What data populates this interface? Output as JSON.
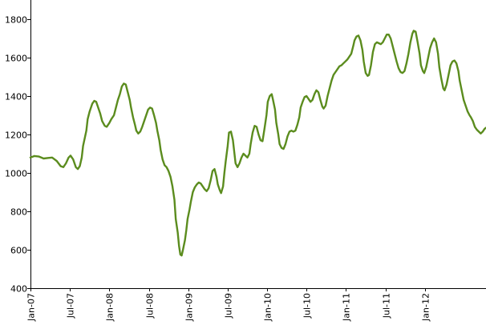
{
  "chart_data": {
    "type": "line",
    "title": "",
    "xlabel": "",
    "ylabel": "",
    "ylim": [
      400,
      1900
    ],
    "y_ticks": [
      400,
      600,
      800,
      1000,
      1200,
      1400,
      1600,
      1800
    ],
    "x_ticks": [
      {
        "label": "Jan-07",
        "t": 0
      },
      {
        "label": "Jul-07",
        "t": 6
      },
      {
        "label": "Jan-08",
        "t": 12
      },
      {
        "label": "Jul-08",
        "t": 18
      },
      {
        "label": "Jan-09",
        "t": 24
      },
      {
        "label": "Jul-09",
        "t": 30
      },
      {
        "label": "Jan-10",
        "t": 36
      },
      {
        "label": "Jul-10",
        "t": 42
      },
      {
        "label": "Jan-11",
        "t": 48
      },
      {
        "label": "Jul-11",
        "t": 54
      },
      {
        "label": "Jan-12",
        "t": 60
      }
    ],
    "x_range": [
      0,
      68
    ],
    "grid": false,
    "series": [
      {
        "color": "#5b8c1e",
        "points": [
          [
            0.0,
            1080
          ],
          [
            0.6,
            1088
          ],
          [
            1.3,
            1085
          ],
          [
            2.0,
            1075
          ],
          [
            2.7,
            1078
          ],
          [
            3.3,
            1080
          ],
          [
            4.0,
            1062
          ],
          [
            4.6,
            1035
          ],
          [
            5.0,
            1030
          ],
          [
            5.4,
            1050
          ],
          [
            5.8,
            1080
          ],
          [
            6.1,
            1090
          ],
          [
            6.5,
            1070
          ],
          [
            6.9,
            1030
          ],
          [
            7.2,
            1020
          ],
          [
            7.5,
            1035
          ],
          [
            7.8,
            1080
          ],
          [
            8.0,
            1140
          ],
          [
            8.5,
            1220
          ],
          [
            8.7,
            1280
          ],
          [
            9.0,
            1320
          ],
          [
            9.4,
            1360
          ],
          [
            9.7,
            1375
          ],
          [
            10.0,
            1370
          ],
          [
            10.3,
            1340
          ],
          [
            10.6,
            1310
          ],
          [
            10.9,
            1270
          ],
          [
            11.3,
            1245
          ],
          [
            11.6,
            1240
          ],
          [
            12.0,
            1260
          ],
          [
            12.3,
            1280
          ],
          [
            12.7,
            1300
          ],
          [
            13.0,
            1340
          ],
          [
            13.3,
            1380
          ],
          [
            13.6,
            1410
          ],
          [
            13.9,
            1450
          ],
          [
            14.2,
            1465
          ],
          [
            14.5,
            1460
          ],
          [
            14.8,
            1420
          ],
          [
            15.1,
            1380
          ],
          [
            15.3,
            1340
          ],
          [
            15.6,
            1290
          ],
          [
            15.9,
            1250
          ],
          [
            16.1,
            1220
          ],
          [
            16.4,
            1205
          ],
          [
            16.7,
            1215
          ],
          [
            17.0,
            1240
          ],
          [
            17.3,
            1270
          ],
          [
            17.6,
            1300
          ],
          [
            17.9,
            1330
          ],
          [
            18.2,
            1340
          ],
          [
            18.5,
            1335
          ],
          [
            18.8,
            1300
          ],
          [
            19.1,
            1260
          ],
          [
            19.3,
            1220
          ],
          [
            19.6,
            1170
          ],
          [
            19.8,
            1120
          ],
          [
            20.1,
            1070
          ],
          [
            20.4,
            1040
          ],
          [
            20.7,
            1030
          ],
          [
            21.0,
            1010
          ],
          [
            21.3,
            980
          ],
          [
            21.6,
            930
          ],
          [
            21.9,
            860
          ],
          [
            22.1,
            760
          ],
          [
            22.4,
            690
          ],
          [
            22.6,
            620
          ],
          [
            22.8,
            575
          ],
          [
            23.0,
            570
          ],
          [
            23.2,
            600
          ],
          [
            23.5,
            650
          ],
          [
            23.7,
            700
          ],
          [
            23.9,
            760
          ],
          [
            24.2,
            810
          ],
          [
            24.4,
            850
          ],
          [
            24.7,
            900
          ],
          [
            25.0,
            925
          ],
          [
            25.3,
            940
          ],
          [
            25.6,
            950
          ],
          [
            25.9,
            945
          ],
          [
            26.2,
            930
          ],
          [
            26.5,
            915
          ],
          [
            26.8,
            905
          ],
          [
            27.1,
            920
          ],
          [
            27.4,
            960
          ],
          [
            27.7,
            1010
          ],
          [
            28.0,
            1020
          ],
          [
            28.3,
            980
          ],
          [
            28.5,
            940
          ],
          [
            28.8,
            910
          ],
          [
            29.0,
            895
          ],
          [
            29.3,
            930
          ],
          [
            29.5,
            1000
          ],
          [
            29.7,
            1060
          ],
          [
            30.0,
            1140
          ],
          [
            30.2,
            1210
          ],
          [
            30.5,
            1215
          ],
          [
            30.8,
            1170
          ],
          [
            31.0,
            1110
          ],
          [
            31.2,
            1050
          ],
          [
            31.5,
            1030
          ],
          [
            31.8,
            1050
          ],
          [
            32.1,
            1080
          ],
          [
            32.4,
            1100
          ],
          [
            32.7,
            1090
          ],
          [
            33.0,
            1080
          ],
          [
            33.3,
            1100
          ],
          [
            33.5,
            1150
          ],
          [
            33.8,
            1210
          ],
          [
            34.1,
            1245
          ],
          [
            34.4,
            1240
          ],
          [
            34.7,
            1200
          ],
          [
            35.0,
            1170
          ],
          [
            35.3,
            1165
          ],
          [
            35.6,
            1230
          ],
          [
            35.9,
            1300
          ],
          [
            36.1,
            1370
          ],
          [
            36.4,
            1400
          ],
          [
            36.7,
            1410
          ],
          [
            36.9,
            1380
          ],
          [
            37.2,
            1330
          ],
          [
            37.4,
            1260
          ],
          [
            37.7,
            1200
          ],
          [
            37.9,
            1150
          ],
          [
            38.2,
            1130
          ],
          [
            38.5,
            1125
          ],
          [
            38.8,
            1150
          ],
          [
            39.1,
            1190
          ],
          [
            39.4,
            1215
          ],
          [
            39.7,
            1220
          ],
          [
            40.0,
            1215
          ],
          [
            40.3,
            1220
          ],
          [
            40.6,
            1250
          ],
          [
            40.9,
            1290
          ],
          [
            41.1,
            1340
          ],
          [
            41.4,
            1370
          ],
          [
            41.7,
            1395
          ],
          [
            42.0,
            1400
          ],
          [
            42.3,
            1385
          ],
          [
            42.6,
            1370
          ],
          [
            42.9,
            1380
          ],
          [
            43.2,
            1410
          ],
          [
            43.5,
            1430
          ],
          [
            43.8,
            1420
          ],
          [
            44.1,
            1380
          ],
          [
            44.4,
            1345
          ],
          [
            44.6,
            1335
          ],
          [
            44.9,
            1350
          ],
          [
            45.2,
            1400
          ],
          [
            45.5,
            1440
          ],
          [
            45.8,
            1480
          ],
          [
            46.1,
            1510
          ],
          [
            46.4,
            1525
          ],
          [
            46.7,
            1540
          ],
          [
            47.0,
            1555
          ],
          [
            47.3,
            1560
          ],
          [
            47.6,
            1570
          ],
          [
            47.9,
            1580
          ],
          [
            48.2,
            1590
          ],
          [
            48.5,
            1605
          ],
          [
            48.8,
            1620
          ],
          [
            49.1,
            1660
          ],
          [
            49.3,
            1690
          ],
          [
            49.6,
            1710
          ],
          [
            49.9,
            1715
          ],
          [
            50.2,
            1690
          ],
          [
            50.5,
            1640
          ],
          [
            50.7,
            1580
          ],
          [
            51.0,
            1520
          ],
          [
            51.3,
            1505
          ],
          [
            51.5,
            1510
          ],
          [
            51.8,
            1560
          ],
          [
            52.1,
            1630
          ],
          [
            52.4,
            1670
          ],
          [
            52.7,
            1680
          ],
          [
            53.0,
            1675
          ],
          [
            53.3,
            1670
          ],
          [
            53.6,
            1680
          ],
          [
            53.9,
            1700
          ],
          [
            54.2,
            1720
          ],
          [
            54.5,
            1720
          ],
          [
            54.8,
            1700
          ],
          [
            55.1,
            1660
          ],
          [
            55.4,
            1620
          ],
          [
            55.7,
            1580
          ],
          [
            56.0,
            1545
          ],
          [
            56.3,
            1525
          ],
          [
            56.6,
            1520
          ],
          [
            56.9,
            1530
          ],
          [
            57.2,
            1570
          ],
          [
            57.5,
            1620
          ],
          [
            57.8,
            1680
          ],
          [
            58.1,
            1725
          ],
          [
            58.3,
            1740
          ],
          [
            58.6,
            1735
          ],
          [
            58.9,
            1680
          ],
          [
            59.2,
            1620
          ],
          [
            59.4,
            1560
          ],
          [
            59.7,
            1530
          ],
          [
            59.9,
            1520
          ],
          [
            60.2,
            1550
          ],
          [
            60.5,
            1600
          ],
          [
            60.8,
            1650
          ],
          [
            61.1,
            1680
          ],
          [
            61.4,
            1700
          ],
          [
            61.7,
            1680
          ],
          [
            62.0,
            1620
          ],
          [
            62.2,
            1550
          ],
          [
            62.5,
            1490
          ],
          [
            62.8,
            1440
          ],
          [
            63.0,
            1430
          ],
          [
            63.3,
            1460
          ],
          [
            63.6,
            1510
          ],
          [
            63.9,
            1560
          ],
          [
            64.2,
            1580
          ],
          [
            64.5,
            1585
          ],
          [
            64.8,
            1570
          ],
          [
            65.1,
            1530
          ],
          [
            65.3,
            1480
          ],
          [
            65.6,
            1430
          ],
          [
            65.9,
            1380
          ],
          [
            66.2,
            1350
          ],
          [
            66.5,
            1320
          ],
          [
            66.8,
            1300
          ],
          [
            67.0,
            1290
          ],
          [
            67.3,
            1270
          ],
          [
            67.6,
            1240
          ],
          [
            67.9,
            1225
          ],
          [
            68.2,
            1215
          ],
          [
            68.5,
            1205
          ],
          [
            68.8,
            1215
          ],
          [
            69.1,
            1230
          ],
          [
            69.3,
            1235
          ]
        ]
      }
    ]
  }
}
